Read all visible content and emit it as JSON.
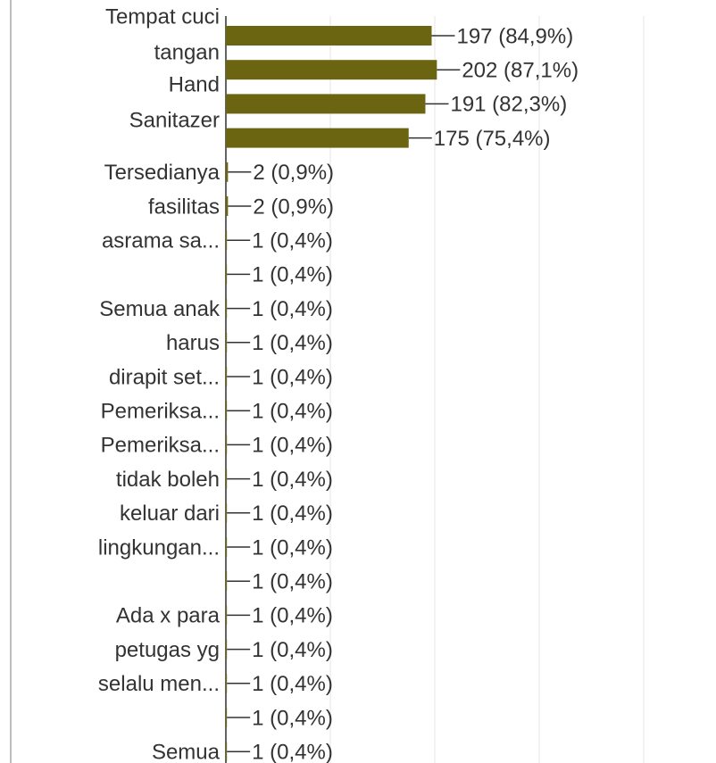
{
  "chart_data": {
    "type": "hbar",
    "categories": [
      [
        "Tempat cuci",
        "tangan"
      ],
      null,
      [
        "Hand",
        "Sanitazer"
      ],
      null,
      "Tersedianya",
      "fasilitas",
      "asrama sa...",
      null,
      "Semua anak",
      "harus",
      "dirapit set...",
      "Pemeriksa...",
      "Pemeriksa...",
      "tidak boleh",
      "keluar dari",
      "lingkungan...",
      null,
      "Ada x para",
      "petugas yg",
      "selalu men...",
      null,
      "Semua"
    ],
    "values": [
      197,
      202,
      191,
      175,
      2,
      2,
      1,
      1,
      1,
      1,
      1,
      1,
      1,
      1,
      1,
      1,
      1,
      1,
      1,
      1,
      1,
      1
    ],
    "value_labels": [
      "197 (84,9%)",
      "202 (87,1%)",
      "191 (82,3%)",
      "175 (75,4%)",
      "2 (0,9%)",
      "2 (0,9%)",
      "1 (0,4%)",
      "1 (0,4%)",
      "1 (0,4%)",
      "1 (0,4%)",
      "1 (0,4%)",
      "1 (0,4%)",
      "1 (0,4%)",
      "1 (0,4%)",
      "1 (0,4%)",
      "1 (0,4%)",
      "1 (0,4%)",
      "1 (0,4%)",
      "1 (0,4%)",
      "1 (0,4%)",
      "1 (0,4%)",
      "1 (0,4%)"
    ],
    "color": "#6b6512",
    "xlim": [
      0,
      400
    ],
    "xticks": [
      0,
      100,
      200,
      300,
      400
    ],
    "grid": true
  }
}
